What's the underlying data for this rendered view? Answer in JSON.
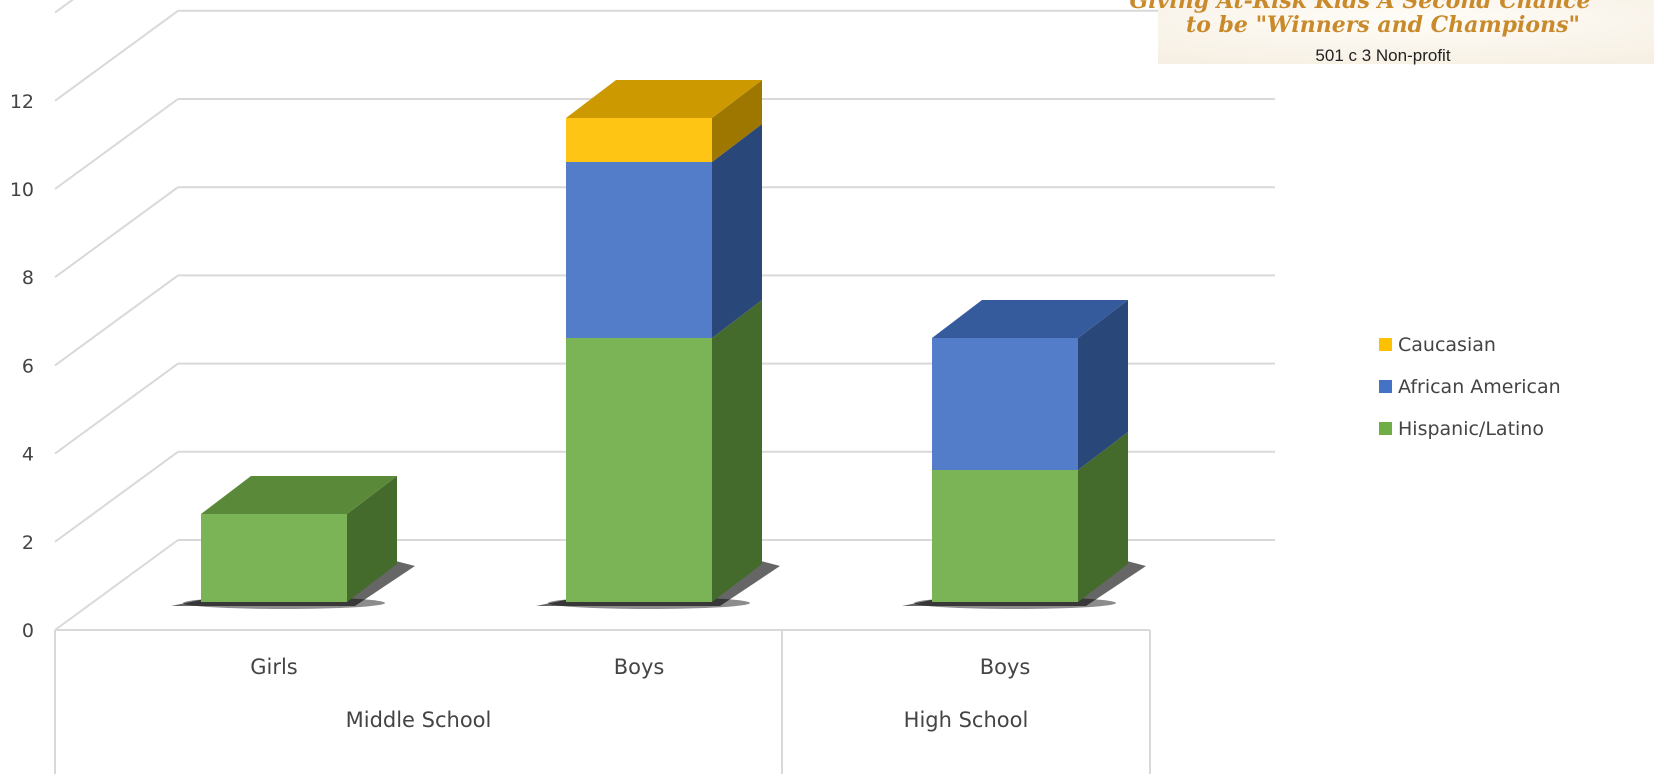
{
  "chart_data": {
    "type": "bar",
    "stacked": true,
    "three_d": true,
    "categories": [
      "Girls",
      "Boys",
      "Boys"
    ],
    "groups": [
      {
        "label": "Middle School",
        "categories": [
          "Girls",
          "Boys"
        ]
      },
      {
        "label": "High School",
        "categories": [
          "Boys"
        ]
      }
    ],
    "series": [
      {
        "name": "Hispanic/Latino",
        "values": [
          2,
          6,
          3
        ],
        "color": "#70ad47"
      },
      {
        "name": "African American",
        "values": [
          0,
          4,
          3
        ],
        "color": "#4472c4"
      },
      {
        "name": "Caucasian",
        "values": [
          0,
          1,
          0
        ],
        "color": "#ffc000"
      }
    ],
    "ylim": [
      0,
      12
    ],
    "yticks": [
      0,
      2,
      4,
      6,
      8,
      10,
      12
    ],
    "ytick_labels": [
      "0",
      "2",
      "4",
      "6",
      "8",
      "10",
      "12"
    ],
    "grid": true,
    "legend_position": "right",
    "title": "",
    "xlabel": "",
    "ylabel": ""
  },
  "logo": {
    "line1": "Giving At-Risk Kids A Second Chance",
    "line2": "to be \"Winners and Champions\"",
    "line3": "501 c 3 Non-profit",
    "accent_color": "#c98a2c"
  }
}
